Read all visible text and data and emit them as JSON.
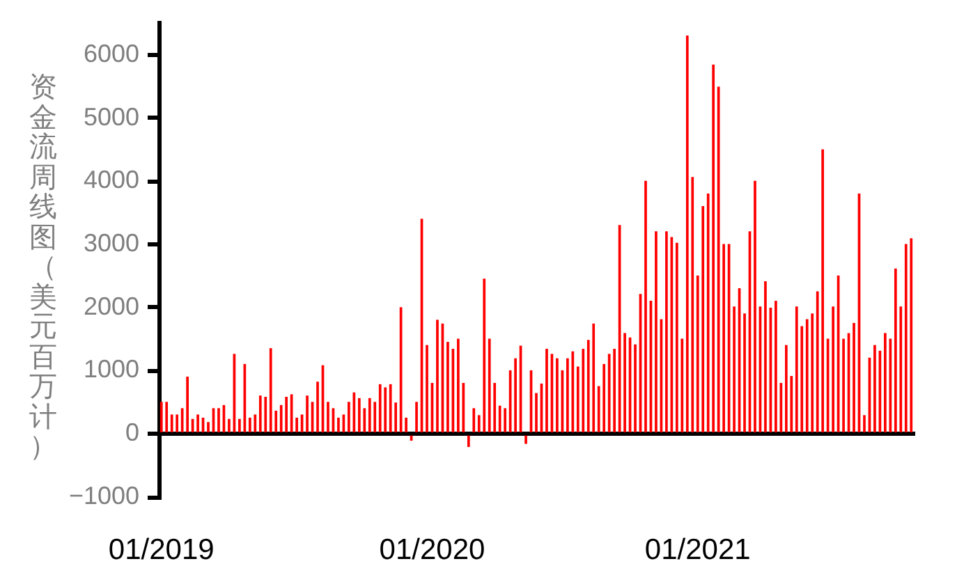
{
  "chart_data": {
    "type": "bar",
    "ylabel": "资金流周线图（美元百万计）",
    "categories": [
      "01/2019",
      null,
      null,
      null,
      null,
      null,
      null,
      null,
      null,
      null,
      null,
      null,
      null,
      null,
      null,
      null,
      null,
      null,
      null,
      null,
      null,
      null,
      null,
      null,
      null,
      null,
      null,
      null,
      null,
      null,
      null,
      null,
      null,
      null,
      null,
      null,
      null,
      null,
      null,
      null,
      null,
      null,
      null,
      null,
      null,
      null,
      null,
      null,
      null,
      null,
      null,
      null,
      "01/2020",
      null,
      null,
      null,
      null,
      null,
      null,
      null,
      null,
      null,
      null,
      null,
      null,
      null,
      null,
      null,
      null,
      null,
      null,
      null,
      null,
      null,
      null,
      null,
      null,
      null,
      null,
      null,
      null,
      null,
      null,
      null,
      null,
      null,
      null,
      null,
      null,
      null,
      null,
      null,
      null,
      null,
      null,
      null,
      null,
      null,
      null,
      null,
      null,
      null,
      null,
      "01/2021",
      null,
      null,
      null,
      null,
      null,
      null,
      null,
      null,
      null,
      null,
      null,
      null,
      null,
      null,
      null,
      null,
      null,
      null,
      null,
      null,
      null,
      null,
      null,
      null,
      null,
      null,
      null,
      null,
      null,
      null,
      null,
      null,
      null,
      null,
      null,
      null,
      null,
      null,
      null,
      null,
      null
    ],
    "values": [
      500,
      500,
      300,
      300,
      400,
      900,
      230,
      300,
      250,
      180,
      400,
      400,
      450,
      230,
      1260,
      230,
      1100,
      250,
      300,
      600,
      580,
      1350,
      360,
      450,
      580,
      620,
      250,
      300,
      600,
      500,
      820,
      1080,
      500,
      400,
      250,
      300,
      500,
      650,
      560,
      400,
      560,
      500,
      780,
      730,
      780,
      490,
      2000,
      250,
      -100,
      500,
      3400,
      1400,
      800,
      1800,
      1740,
      1450,
      1340,
      1500,
      800,
      -200,
      400,
      290,
      2450,
      1500,
      800,
      440,
      400,
      1000,
      1190,
      1390,
      -150,
      1000,
      640,
      790,
      1340,
      1260,
      1190,
      1000,
      1190,
      1300,
      1060,
      1340,
      1480,
      1740,
      750,
      1100,
      1260,
      1340,
      3300,
      1590,
      1520,
      1410,
      2210,
      4000,
      2100,
      3200,
      1810,
      3200,
      3110,
      3020,
      1500,
      6300,
      4060,
      2500,
      3600,
      3800,
      5840,
      5490,
      3000,
      3000,
      2010,
      2300,
      1900,
      3200,
      4000,
      2010,
      2410,
      1990,
      2100,
      800,
      1400,
      910,
      2010,
      1700,
      1810,
      1900,
      2250,
      4500,
      1500,
      2010,
      2500,
      1500,
      1590,
      1750,
      3800,
      290,
      1200,
      1400,
      1310,
      1590,
      1500,
      2610,
      2010,
      3000,
      3090
    ],
    "color": "#ff0000",
    "ylim": [
      -1000,
      6500
    ],
    "yticks": [
      {
        "value": -1000,
        "label": "−1000"
      },
      0,
      1000,
      2000,
      3000,
      4000,
      5000,
      6000
    ]
  }
}
